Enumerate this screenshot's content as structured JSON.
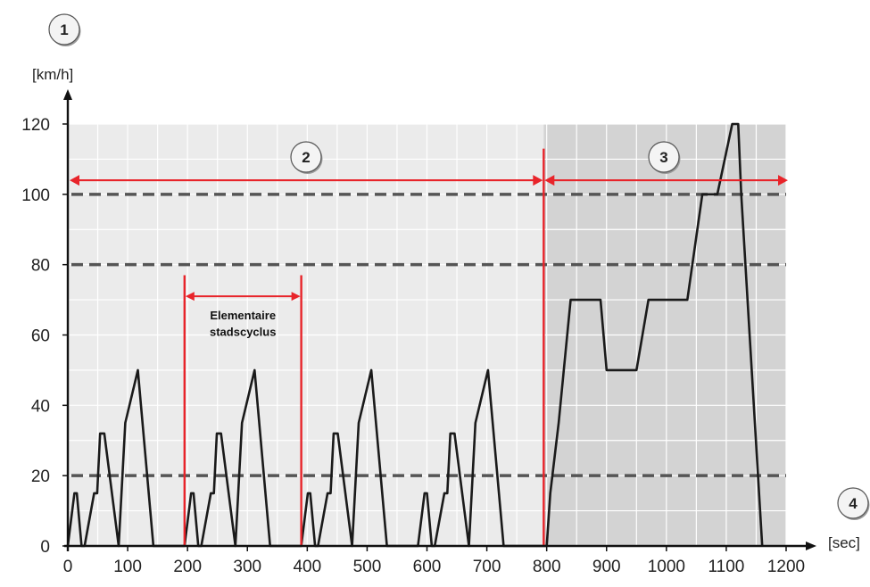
{
  "chart_data": {
    "type": "line",
    "xlabel": "[sec]",
    "ylabel": "[km/h]",
    "xlim": [
      0,
      1200
    ],
    "ylim": [
      0,
      120
    ],
    "x_ticks": [
      "0",
      "100",
      "200",
      "300",
      "400",
      "500",
      "600",
      "700",
      "800",
      "900",
      "1000",
      "1100",
      "1200"
    ],
    "y_ticks": [
      "0",
      "20",
      "40",
      "60",
      "80",
      "100",
      "120"
    ],
    "grid": true,
    "reference_lines": [
      20,
      80,
      100
    ],
    "badges": {
      "y_axis": "1",
      "urban": "2",
      "extra_urban": "3",
      "x_axis": "4"
    },
    "annotation": {
      "label_line1": "Elementaire",
      "label_line2": "stadscyclus",
      "x_start": 195,
      "x_end": 390
    },
    "phase_boundary_x": 795,
    "series": [
      {
        "x": [
          0,
          11,
          15,
          23,
          28,
          44,
          49,
          54,
          61,
          85,
          96,
          117,
          143,
          195,
          206,
          210,
          218,
          223,
          239,
          244,
          249,
          256,
          280,
          291,
          312,
          338,
          390,
          401,
          405,
          413,
          418,
          434,
          439,
          444,
          451,
          475,
          486,
          507,
          533,
          585,
          596,
          600,
          608,
          613,
          629,
          634,
          639,
          646,
          670,
          681,
          702,
          728,
          780,
          800,
          806,
          820,
          840,
          890,
          900,
          950,
          970,
          1020,
          1035,
          1060,
          1085,
          1110,
          1120,
          1125,
          1160
        ],
        "y": [
          0,
          15,
          15,
          0,
          0,
          15,
          15,
          32,
          32,
          0,
          35,
          50,
          0,
          0,
          15,
          15,
          0,
          0,
          15,
          15,
          32,
          32,
          0,
          35,
          50,
          0,
          0,
          15,
          15,
          0,
          0,
          15,
          15,
          32,
          32,
          0,
          35,
          50,
          0,
          0,
          15,
          15,
          0,
          0,
          15,
          15,
          32,
          32,
          0,
          35,
          50,
          0,
          0,
          0,
          15,
          35,
          70,
          70,
          50,
          50,
          70,
          70,
          70,
          100,
          100,
          120,
          120,
          100,
          0
        ]
      }
    ],
    "colors": {
      "line": "#1a1a1a",
      "red": "#e8242a",
      "urban_bg": "#ebebeb",
      "extra_bg": "#d3d3d3",
      "grid": "#ffffff",
      "dash": "#555555"
    }
  }
}
